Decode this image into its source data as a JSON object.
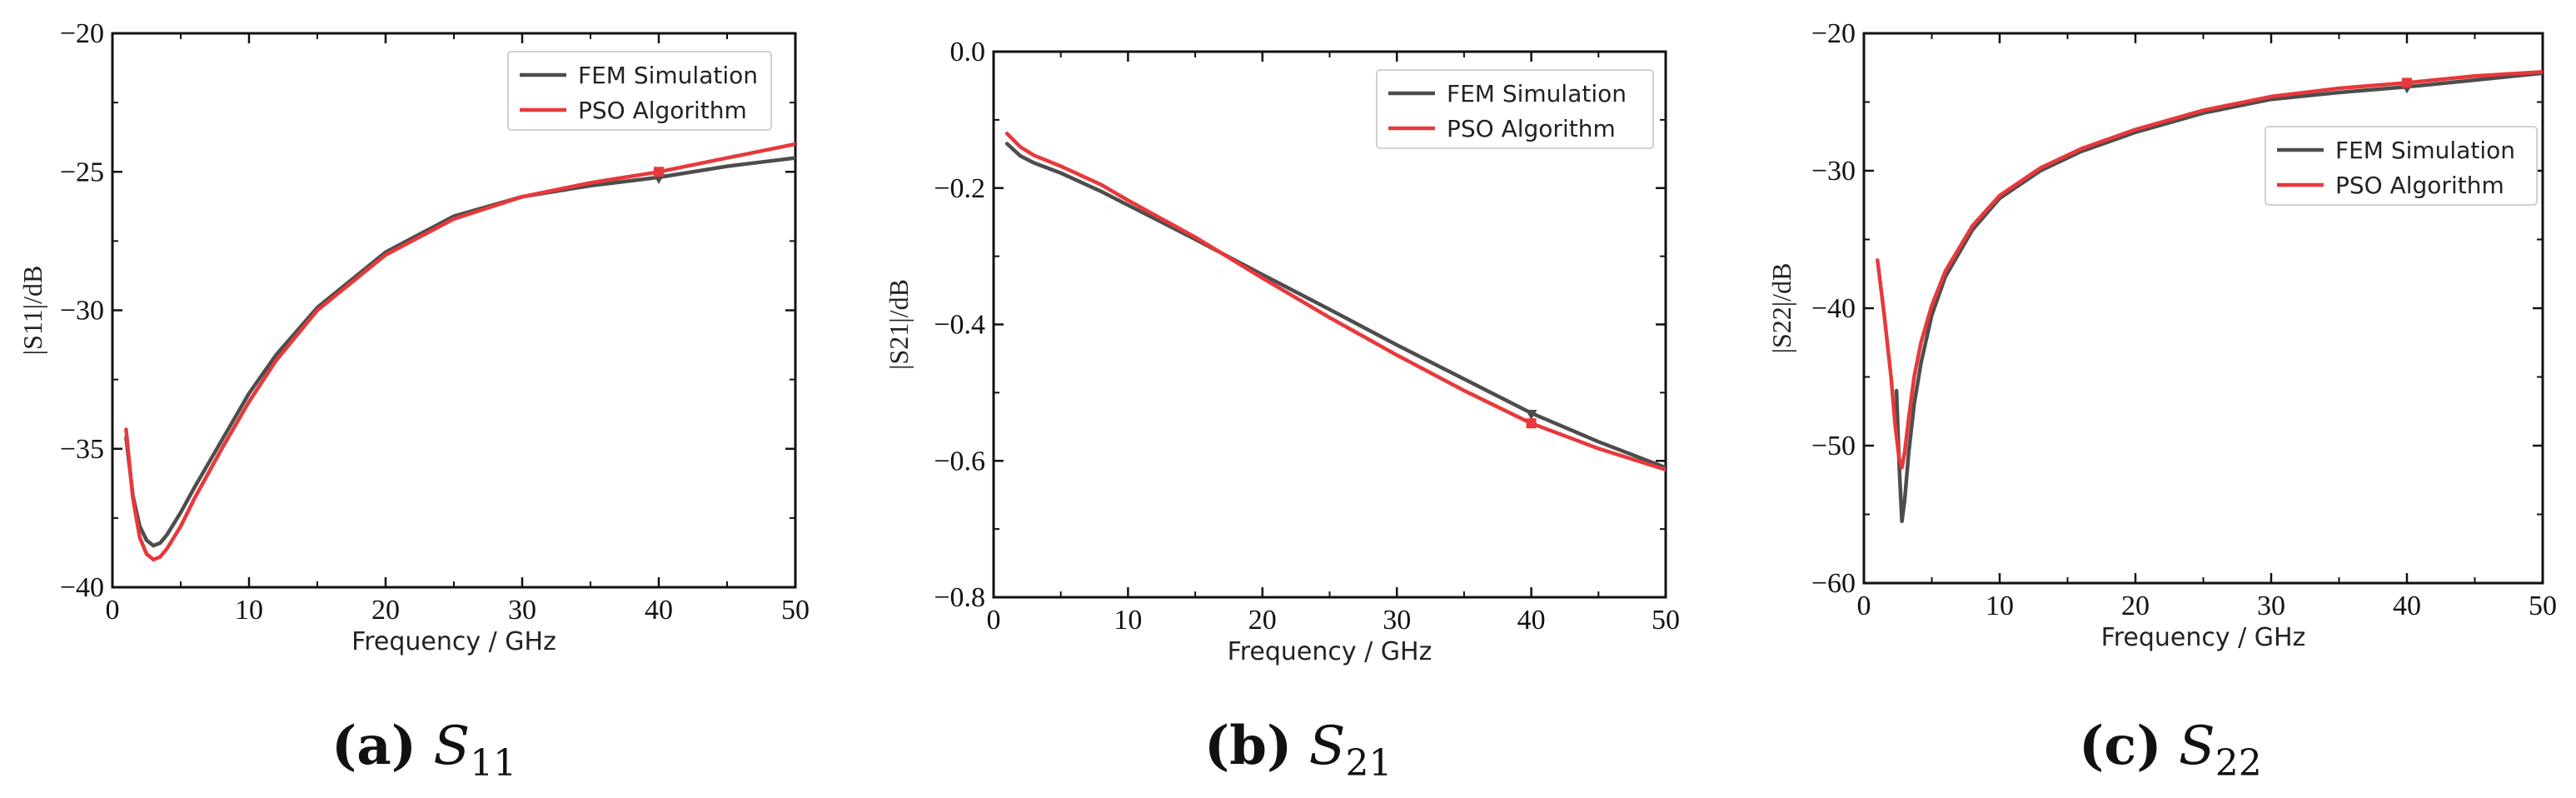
{
  "figure": {
    "captions": [
      {
        "label": "(a)",
        "symbol": "S",
        "sub": "11"
      },
      {
        "label": "(b)",
        "symbol": "S",
        "sub": "21"
      },
      {
        "label": "(c)",
        "symbol": "S",
        "sub": "22"
      }
    ]
  },
  "colors": {
    "fem": "#4d4d4d",
    "pso": "#e8383b"
  },
  "chart_data": [
    {
      "type": "line",
      "title": "",
      "xlabel": "Frequency / GHz",
      "ylabel": "|S11|/dB",
      "xlim": [
        0,
        50
      ],
      "ylim": [
        -40,
        -20
      ],
      "xticks": [
        "0",
        "10",
        "20",
        "30",
        "40",
        "50"
      ],
      "yticks": [
        "-20",
        "-25",
        "-30",
        "-35",
        "-40"
      ],
      "legend": {
        "position": "top-right",
        "entries": [
          "FEM Simulation",
          "PSO Algorithm"
        ]
      },
      "marker_x": 40,
      "series": [
        {
          "name": "FEM Simulation",
          "color": "#4d4d4d",
          "x": [
            1,
            1.5,
            2,
            2.5,
            3,
            3.5,
            4,
            5,
            6,
            8,
            10,
            12,
            15,
            20,
            25,
            30,
            35,
            40,
            45,
            50
          ],
          "y": [
            -34.6,
            -36.7,
            -37.8,
            -38.3,
            -38.5,
            -38.4,
            -38.1,
            -37.3,
            -36.4,
            -34.7,
            -33.0,
            -31.6,
            -29.9,
            -27.9,
            -26.6,
            -25.9,
            -25.5,
            -25.2,
            -24.8,
            -24.5
          ]
        },
        {
          "name": "PSO Algorithm",
          "color": "#e8383b",
          "x": [
            1,
            1.5,
            2,
            2.5,
            3,
            3.5,
            4,
            5,
            6,
            8,
            10,
            12,
            15,
            20,
            25,
            30,
            35,
            40,
            45,
            50
          ],
          "y": [
            -34.3,
            -36.8,
            -38.2,
            -38.8,
            -39.0,
            -38.9,
            -38.6,
            -37.8,
            -36.8,
            -35.0,
            -33.3,
            -31.8,
            -30.0,
            -28.0,
            -26.7,
            -25.9,
            -25.4,
            -25.0,
            -24.5,
            -24.0
          ]
        }
      ]
    },
    {
      "type": "line",
      "title": "",
      "xlabel": "Frequency / GHz",
      "ylabel": "|S21|/dB",
      "xlim": [
        0,
        50
      ],
      "ylim": [
        -0.8,
        0.0
      ],
      "xticks": [
        "0",
        "10",
        "20",
        "30",
        "40",
        "50"
      ],
      "yticks": [
        "0.0",
        "-0.2",
        "-0.4",
        "-0.6",
        "-0.8"
      ],
      "legend": {
        "position": "top-right",
        "entries": [
          "FEM Simulation",
          "PSO Algorithm"
        ]
      },
      "marker_x": 40,
      "series": [
        {
          "name": "FEM Simulation",
          "color": "#4d4d4d",
          "x": [
            1,
            2,
            3,
            5,
            8,
            10,
            15,
            20,
            25,
            30,
            35,
            40,
            45,
            50
          ],
          "y": [
            -0.135,
            -0.153,
            -0.163,
            -0.178,
            -0.205,
            -0.225,
            -0.275,
            -0.327,
            -0.378,
            -0.43,
            -0.48,
            -0.53,
            -0.572,
            -0.61
          ]
        },
        {
          "name": "PSO Algorithm",
          "color": "#e8383b",
          "x": [
            1,
            2,
            3,
            5,
            8,
            10,
            15,
            20,
            25,
            30,
            35,
            40,
            45,
            50
          ],
          "y": [
            -0.12,
            -0.14,
            -0.152,
            -0.168,
            -0.195,
            -0.218,
            -0.272,
            -0.332,
            -0.39,
            -0.445,
            -0.497,
            -0.545,
            -0.582,
            -0.613
          ]
        }
      ]
    },
    {
      "type": "line",
      "title": "",
      "xlabel": "Frequency / GHz",
      "ylabel": "|S22|/dB",
      "xlim": [
        0,
        50
      ],
      "ylim": [
        -60,
        -20
      ],
      "xticks": [
        "0",
        "10",
        "20",
        "30",
        "40",
        "50"
      ],
      "yticks": [
        "-20",
        "-30",
        "-40",
        "-50",
        "-60"
      ],
      "legend": {
        "position": "right",
        "entries": [
          "FEM Simulation",
          "PSO Algorithm"
        ]
      },
      "marker_x": 40,
      "series": [
        {
          "name": "FEM Simulation",
          "color": "#4d4d4d",
          "x": [
            2.4,
            2.6,
            2.8,
            3.0,
            3.3,
            3.7,
            4.2,
            5,
            6,
            8,
            10,
            13,
            16,
            20,
            25,
            30,
            35,
            40,
            45,
            50
          ],
          "y": [
            -46.0,
            -51.5,
            -55.5,
            -54.0,
            -50.5,
            -47.0,
            -44.0,
            -40.5,
            -37.7,
            -34.3,
            -32.0,
            -30.0,
            -28.6,
            -27.2,
            -25.8,
            -24.8,
            -24.3,
            -23.9,
            -23.4,
            -22.9
          ]
        },
        {
          "name": "PSO Algorithm",
          "color": "#e8383b",
          "x": [
            1,
            1.5,
            2.0,
            2.3,
            2.6,
            2.8,
            3.0,
            3.3,
            3.7,
            4.2,
            5,
            6,
            8,
            10,
            13,
            16,
            20,
            25,
            30,
            35,
            40,
            45,
            50
          ],
          "y": [
            -36.5,
            -40.5,
            -45.0,
            -48.5,
            -51.0,
            -51.6,
            -50.5,
            -48.0,
            -45.0,
            -42.5,
            -39.8,
            -37.3,
            -34.0,
            -31.8,
            -29.8,
            -28.4,
            -27.0,
            -25.6,
            -24.6,
            -24.0,
            -23.6,
            -23.1,
            -22.8
          ]
        }
      ]
    }
  ]
}
